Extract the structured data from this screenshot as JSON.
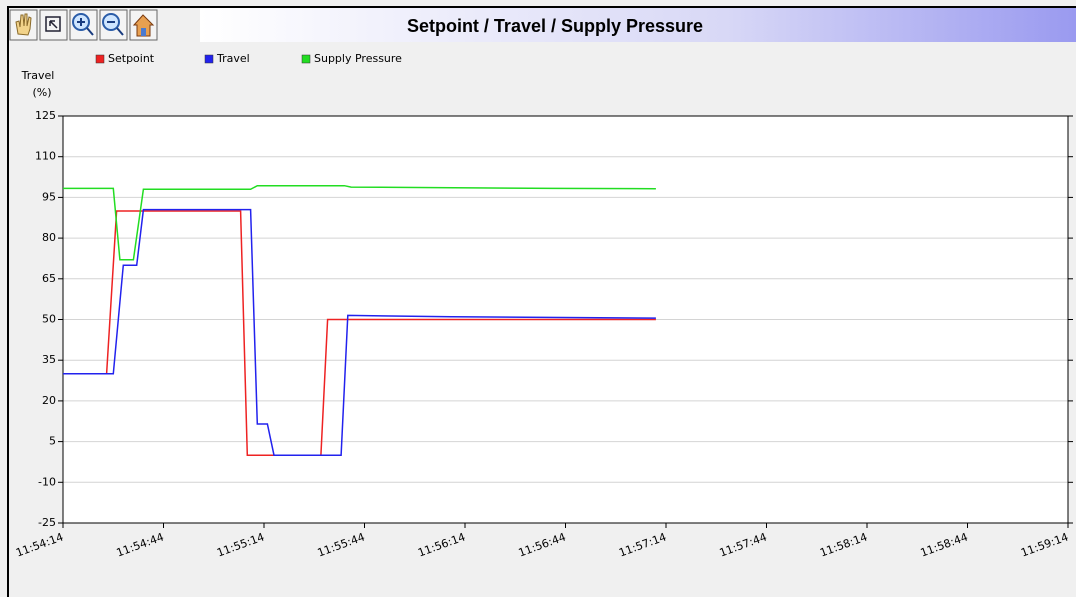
{
  "chart_data": {
    "type": "line",
    "title": "Setpoint / Travel / Supply Pressure",
    "ylabel": [
      "Travel",
      "(%)"
    ],
    "xlim": [
      "11:54:14",
      "11:59:14"
    ],
    "xticks": [
      "11:54:14",
      "11:54:44",
      "11:55:14",
      "11:55:44",
      "11:56:14",
      "11:56:44",
      "11:57:14",
      "11:57:44",
      "11:58:14",
      "11:58:44",
      "11:59:14"
    ],
    "ylim": [
      -25,
      125
    ],
    "yticks": [
      -25,
      -10,
      5,
      20,
      35,
      50,
      65,
      80,
      95,
      110,
      125
    ],
    "grid": true,
    "series": [
      {
        "name": "Setpoint",
        "color": "#ee2222",
        "x": [
          "11:54:14",
          "11:54:27",
          "11:54:30",
          "11:55:07",
          "11:55:09",
          "11:55:31",
          "11:55:33",
          "11:57:11"
        ],
        "values": [
          30,
          30,
          90,
          90,
          0,
          0,
          50,
          50
        ]
      },
      {
        "name": "Travel",
        "color": "#2222ee",
        "x": [
          "11:54:14",
          "11:54:29",
          "11:54:32",
          "11:54:36",
          "11:54:38",
          "11:55:10",
          "11:55:12",
          "11:55:15",
          "11:55:17",
          "11:55:37",
          "11:55:39",
          "11:56:10",
          "11:57:11"
        ],
        "values": [
          30,
          30,
          70,
          70,
          90.5,
          90.5,
          11.5,
          11.5,
          0,
          0,
          51.5,
          51,
          50.5
        ]
      },
      {
        "name": "Supply Pressure",
        "color": "#22dd22",
        "x": [
          "11:54:14",
          "11:54:29",
          "11:54:31",
          "11:54:35",
          "11:54:38",
          "11:55:10",
          "11:55:12",
          "11:55:38",
          "11:55:40",
          "11:56:40",
          "11:57:11"
        ],
        "values": [
          98.3,
          98.3,
          72,
          72,
          98,
          98,
          99.3,
          99.3,
          98.8,
          98.3,
          98.2
        ]
      }
    ]
  }
}
